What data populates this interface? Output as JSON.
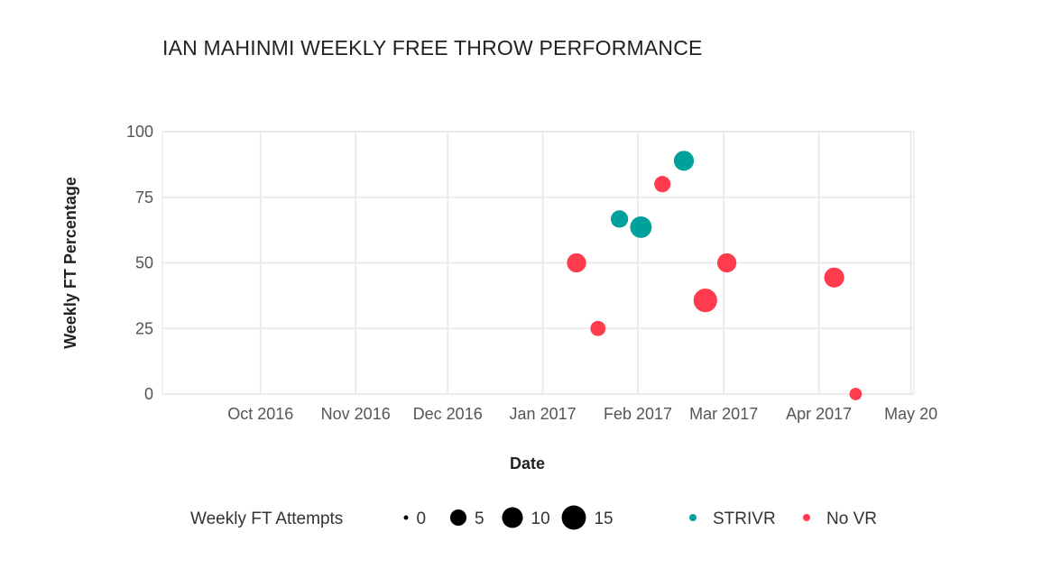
{
  "chart_data": {
    "type": "scatter",
    "title": "IAN MAHINMI WEEKLY FREE THROW PERFORMANCE",
    "xlabel": "Date",
    "ylabel": "Weekly FT Percentage",
    "xlim": [
      "2016-08-30",
      "2017-05-02"
    ],
    "ylim": [
      0,
      100
    ],
    "yticks": [
      0,
      25,
      50,
      75,
      100
    ],
    "xticks": [
      {
        "date": "2016-10-01",
        "label": "Oct 2016"
      },
      {
        "date": "2016-11-01",
        "label": "Nov 2016"
      },
      {
        "date": "2016-12-01",
        "label": "Dec 2016"
      },
      {
        "date": "2017-01-01",
        "label": "Jan 2017"
      },
      {
        "date": "2017-02-01",
        "label": "Feb 2017"
      },
      {
        "date": "2017-03-01",
        "label": "Mar 2017"
      },
      {
        "date": "2017-04-01",
        "label": "Apr 2017"
      },
      {
        "date": "2017-05-01",
        "label": "May 20"
      }
    ],
    "grid": true,
    "size_legend": {
      "title": "Weekly FT Attempts",
      "values": [
        0,
        5,
        10,
        15
      ]
    },
    "color_legend": [
      {
        "name": "STRIVR",
        "color": "#00A19A"
      },
      {
        "name": "No VR",
        "color": "#FF3B4E"
      }
    ],
    "points": [
      {
        "date": "2017-01-12",
        "pct": 50,
        "attempts": 8,
        "group": "No VR"
      },
      {
        "date": "2017-01-19",
        "pct": 25,
        "attempts": 4,
        "group": "No VR"
      },
      {
        "date": "2017-01-26",
        "pct": 66.7,
        "attempts": 6,
        "group": "STRIVR"
      },
      {
        "date": "2017-02-02",
        "pct": 63.6,
        "attempts": 11,
        "group": "STRIVR"
      },
      {
        "date": "2017-02-09",
        "pct": 80,
        "attempts": 5,
        "group": "No VR"
      },
      {
        "date": "2017-02-16",
        "pct": 88.9,
        "attempts": 9,
        "group": "STRIVR"
      },
      {
        "date": "2017-02-23",
        "pct": 35.7,
        "attempts": 14,
        "group": "No VR"
      },
      {
        "date": "2017-03-02",
        "pct": 50,
        "attempts": 8,
        "group": "No VR"
      },
      {
        "date": "2017-04-06",
        "pct": 44.4,
        "attempts": 9,
        "group": "No VR"
      },
      {
        "date": "2017-04-13",
        "pct": 0,
        "attempts": 2,
        "group": "No VR"
      }
    ]
  }
}
